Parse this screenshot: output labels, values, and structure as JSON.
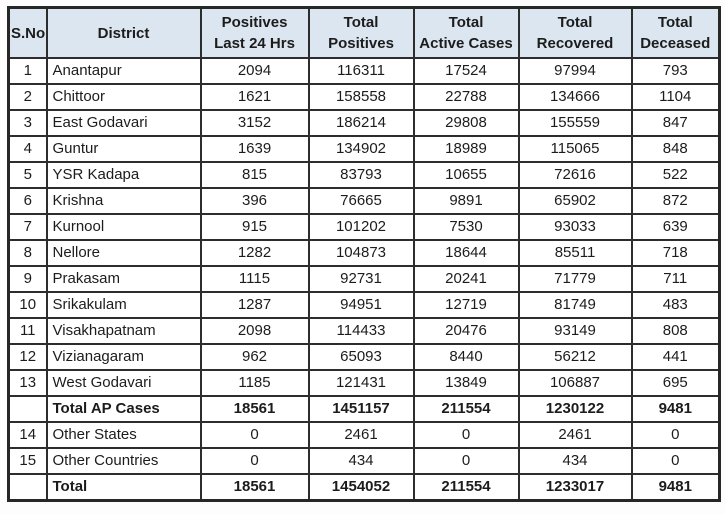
{
  "colors": {
    "header_bg": "#dce6f1",
    "border": "#2d2d2d",
    "row_bg": "#ffffff",
    "text": "#1c1c1c"
  },
  "chart_data": {
    "type": "table",
    "columns": [
      "S.No",
      "District",
      "Positives Last 24 Hrs",
      "Total Positives",
      "Total Active Cases",
      "Total Recovered",
      "Total Deceased"
    ],
    "header_display": [
      "S.No",
      "District",
      "Positives\nLast 24 Hrs",
      "Total\nPositives",
      "Total\nActive Cases",
      "Total\nRecovered",
      "Total\nDeceased"
    ],
    "rows": [
      {
        "s_no": "1",
        "district": "Anantapur",
        "positives_last_24_hrs": "2094",
        "total_positives": "116311",
        "total_active_cases": "17524",
        "total_recovered": "97994",
        "total_deceased": "793",
        "bold": false
      },
      {
        "s_no": "2",
        "district": "Chittoor",
        "positives_last_24_hrs": "1621",
        "total_positives": "158558",
        "total_active_cases": "22788",
        "total_recovered": "134666",
        "total_deceased": "1104",
        "bold": false
      },
      {
        "s_no": "3",
        "district": "East Godavari",
        "positives_last_24_hrs": "3152",
        "total_positives": "186214",
        "total_active_cases": "29808",
        "total_recovered": "155559",
        "total_deceased": "847",
        "bold": false
      },
      {
        "s_no": "4",
        "district": "Guntur",
        "positives_last_24_hrs": "1639",
        "total_positives": "134902",
        "total_active_cases": "18989",
        "total_recovered": "115065",
        "total_deceased": "848",
        "bold": false
      },
      {
        "s_no": "5",
        "district": "YSR Kadapa",
        "positives_last_24_hrs": "815",
        "total_positives": "83793",
        "total_active_cases": "10655",
        "total_recovered": "72616",
        "total_deceased": "522",
        "bold": false
      },
      {
        "s_no": "6",
        "district": "Krishna",
        "positives_last_24_hrs": "396",
        "total_positives": "76665",
        "total_active_cases": "9891",
        "total_recovered": "65902",
        "total_deceased": "872",
        "bold": false
      },
      {
        "s_no": "7",
        "district": "Kurnool",
        "positives_last_24_hrs": "915",
        "total_positives": "101202",
        "total_active_cases": "7530",
        "total_recovered": "93033",
        "total_deceased": "639",
        "bold": false
      },
      {
        "s_no": "8",
        "district": "Nellore",
        "positives_last_24_hrs": "1282",
        "total_positives": "104873",
        "total_active_cases": "18644",
        "total_recovered": "85511",
        "total_deceased": "718",
        "bold": false
      },
      {
        "s_no": "9",
        "district": "Prakasam",
        "positives_last_24_hrs": "1115",
        "total_positives": "92731",
        "total_active_cases": "20241",
        "total_recovered": "71779",
        "total_deceased": "711",
        "bold": false
      },
      {
        "s_no": "10",
        "district": "Srikakulam",
        "positives_last_24_hrs": "1287",
        "total_positives": "94951",
        "total_active_cases": "12719",
        "total_recovered": "81749",
        "total_deceased": "483",
        "bold": false
      },
      {
        "s_no": "11",
        "district": "Visakhapatnam",
        "positives_last_24_hrs": "2098",
        "total_positives": "114433",
        "total_active_cases": "20476",
        "total_recovered": "93149",
        "total_deceased": "808",
        "bold": false
      },
      {
        "s_no": "12",
        "district": "Vizianagaram",
        "positives_last_24_hrs": "962",
        "total_positives": "65093",
        "total_active_cases": "8440",
        "total_recovered": "56212",
        "total_deceased": "441",
        "bold": false
      },
      {
        "s_no": "13",
        "district": "West Godavari",
        "positives_last_24_hrs": "1185",
        "total_positives": "121431",
        "total_active_cases": "13849",
        "total_recovered": "106887",
        "total_deceased": "695",
        "bold": false
      },
      {
        "s_no": "",
        "district": "Total AP Cases",
        "positives_last_24_hrs": "18561",
        "total_positives": "1451157",
        "total_active_cases": "211554",
        "total_recovered": "1230122",
        "total_deceased": "9481",
        "bold": true
      },
      {
        "s_no": "14",
        "district": "Other States",
        "positives_last_24_hrs": "0",
        "total_positives": "2461",
        "total_active_cases": "0",
        "total_recovered": "2461",
        "total_deceased": "0",
        "bold": false
      },
      {
        "s_no": "15",
        "district": "Other Countries",
        "positives_last_24_hrs": "0",
        "total_positives": "434",
        "total_active_cases": "0",
        "total_recovered": "434",
        "total_deceased": "0",
        "bold": false
      },
      {
        "s_no": "",
        "district": "Total",
        "positives_last_24_hrs": "18561",
        "total_positives": "1454052",
        "total_active_cases": "211554",
        "total_recovered": "1233017",
        "total_deceased": "9481",
        "bold": true
      }
    ]
  }
}
